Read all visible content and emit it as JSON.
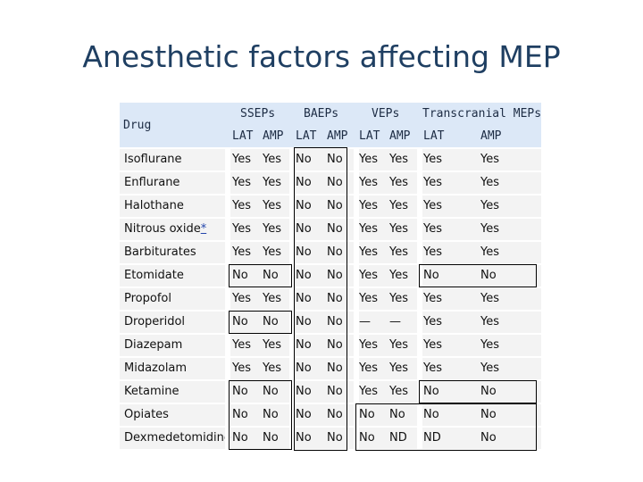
{
  "title": "Anesthetic factors affecting MEP",
  "table": {
    "drug_header": "Drug",
    "groups": [
      "SSEPs",
      "BAEPs",
      "VEPs",
      "Transcranial MEPs"
    ],
    "subheaders": [
      "LAT",
      "AMP",
      "LAT",
      "AMP",
      "LAT",
      "AMP",
      "LAT",
      "AMP"
    ],
    "rows": [
      {
        "drug": "Isoflurane",
        "vals": [
          "Yes",
          "Yes",
          "No",
          "No",
          "Yes",
          "Yes",
          "Yes",
          "Yes"
        ]
      },
      {
        "drug": "Enflurane",
        "vals": [
          "Yes",
          "Yes",
          "No",
          "No",
          "Yes",
          "Yes",
          "Yes",
          "Yes"
        ]
      },
      {
        "drug": "Halothane",
        "vals": [
          "Yes",
          "Yes",
          "No",
          "No",
          "Yes",
          "Yes",
          "Yes",
          "Yes"
        ]
      },
      {
        "drug": "Nitrous oxide",
        "link": "*",
        "vals": [
          "Yes",
          "Yes",
          "No",
          "No",
          "Yes",
          "Yes",
          "Yes",
          "Yes"
        ]
      },
      {
        "drug": "Barbiturates",
        "vals": [
          "Yes",
          "Yes",
          "No",
          "No",
          "Yes",
          "Yes",
          "Yes",
          "Yes"
        ]
      },
      {
        "drug": "Etomidate",
        "vals": [
          "No",
          "No",
          "No",
          "No",
          "Yes",
          "Yes",
          "No",
          "No"
        ]
      },
      {
        "drug": "Propofol",
        "vals": [
          "Yes",
          "Yes",
          "No",
          "No",
          "Yes",
          "Yes",
          "Yes",
          "Yes"
        ]
      },
      {
        "drug": "Droperidol",
        "vals": [
          "No",
          "No",
          "No",
          "No",
          "—",
          "—",
          "Yes",
          "Yes"
        ]
      },
      {
        "drug": "Diazepam",
        "vals": [
          "Yes",
          "Yes",
          "No",
          "No",
          "Yes",
          "Yes",
          "Yes",
          "Yes"
        ]
      },
      {
        "drug": "Midazolam",
        "vals": [
          "Yes",
          "Yes",
          "No",
          "No",
          "Yes",
          "Yes",
          "Yes",
          "Yes"
        ]
      },
      {
        "drug": "Ketamine",
        "vals": [
          "No",
          "No",
          "No",
          "No",
          "Yes",
          "Yes",
          "No",
          "No"
        ]
      },
      {
        "drug": "Opiates",
        "vals": [
          "No",
          "No",
          "No",
          "No",
          "No",
          "No",
          "No",
          "No"
        ]
      },
      {
        "drug": "Dexmedetomidine",
        "vals": [
          "No",
          "No",
          "No",
          "No",
          "No",
          "ND",
          "ND",
          "No"
        ]
      }
    ]
  }
}
